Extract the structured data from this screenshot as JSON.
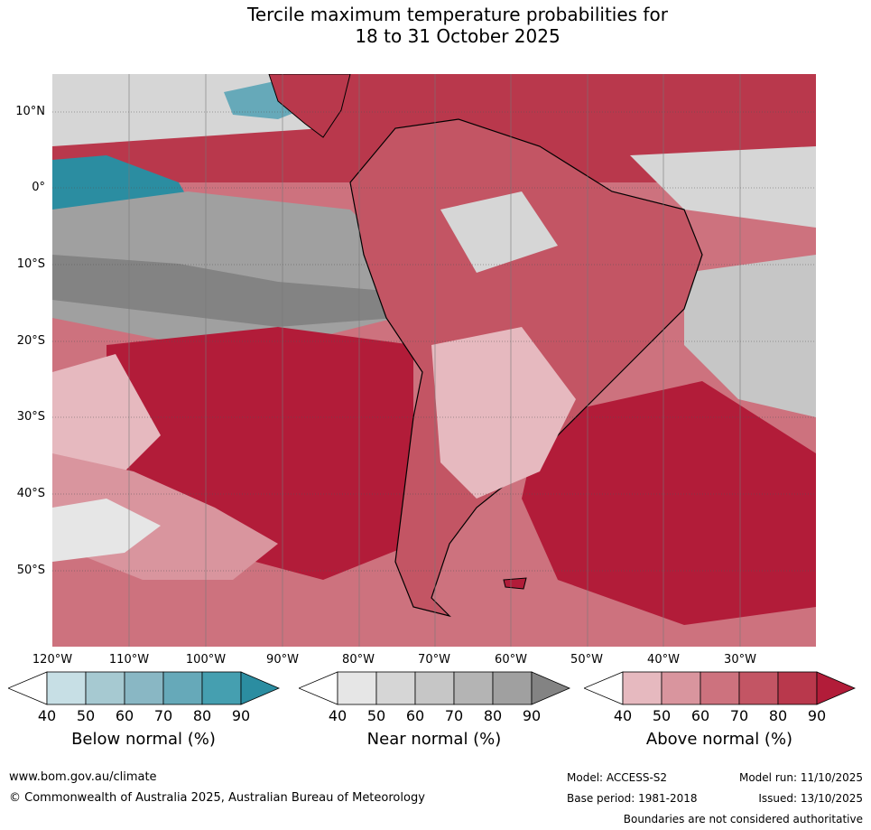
{
  "title": {
    "line1": "Tercile maximum temperature probabilities for",
    "line2": "18 to 31 October 2025"
  },
  "map": {
    "lat_labels": [
      "10°N",
      "0°",
      "10°S",
      "20°S",
      "30°S",
      "40°S",
      "50°S"
    ],
    "lon_labels": [
      "120°W",
      "110°W",
      "100°W",
      "90°W",
      "80°W",
      "70°W",
      "60°W",
      "50°W",
      "40°W",
      "30°W"
    ]
  },
  "colorbars": {
    "below": {
      "label": "Below normal (%)",
      "ticks": [
        "40",
        "50",
        "60",
        "70",
        "80",
        "90"
      ],
      "colors": [
        "#ffffff",
        "#c7dfe5",
        "#a6c9d1",
        "#89b7c4",
        "#66a9b9",
        "#459fb0",
        "#2b8da1"
      ]
    },
    "near": {
      "label": "Near normal (%)",
      "ticks": [
        "40",
        "50",
        "60",
        "70",
        "80",
        "90"
      ],
      "colors": [
        "#ffffff",
        "#e6e6e6",
        "#d6d6d6",
        "#c6c6c6",
        "#b4b4b4",
        "#a0a0a0",
        "#838383"
      ]
    },
    "above": {
      "label": "Above normal (%)",
      "ticks": [
        "40",
        "50",
        "60",
        "70",
        "80",
        "90"
      ],
      "colors": [
        "#ffffff",
        "#e6b9bf",
        "#d9959e",
        "#cd727e",
        "#c35564",
        "#b9384c",
        "#b21c39"
      ]
    }
  },
  "footer": {
    "website": "www.bom.gov.au/climate",
    "copyright": "© Commonwealth of Australia 2025, Australian Bureau of Meteorology",
    "model": "Model: ACCESS-S2",
    "model_run": "Model run: 11/10/2025",
    "base_period": "Base period: 1981-2018",
    "issued": "Issued: 13/10/2025",
    "disclaimer": "Boundaries are not considered authoritative"
  }
}
